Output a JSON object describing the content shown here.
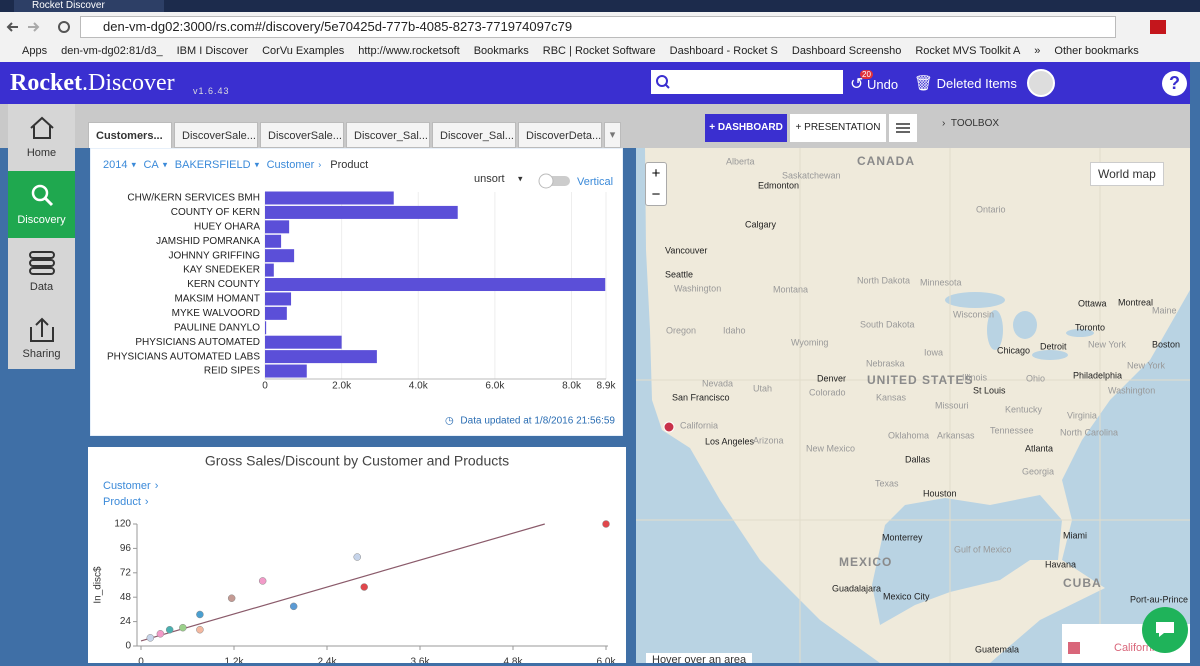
{
  "browser": {
    "tab_title": "Rocket Discover",
    "url": "den-vm-dg02:3000/rs.com#/discovery/5e70425d-777b-4085-8273-771974097c79",
    "bookmarks": [
      "Apps",
      "den-vm-dg02:81/d3_",
      "IBM I Discover",
      "CorVu Examples",
      "http://www.rocketsoft",
      "Bookmarks",
      "RBC | Rocket Software",
      "Dashboard - Rocket S",
      "Dashboard Screensho",
      "Rocket MVS Toolkit A",
      "»",
      "Other bookmarks"
    ]
  },
  "app": {
    "logo_bold": "Rocket",
    "logo_rest": ".Discover",
    "version": "v1.6.43",
    "undo_count": 20,
    "undo": "Undo",
    "deleted_items": "Deleted Items",
    "help": "?"
  },
  "sidebar": [
    "Home",
    "Discovery",
    "Data",
    "Sharing"
  ],
  "tabs": [
    "Customers...",
    "DiscoverSale...",
    "DiscoverSale...",
    "Discover_Sal...",
    "Discover_Sal...",
    "DiscoverDeta..."
  ],
  "toolbar": {
    "dashboard": "DASHBOARD",
    "presentation": "PRESENTATION",
    "toolbox": "TOOLBOX"
  },
  "bar_panel": {
    "breadcrumb": [
      "2014",
      "CA",
      "BAKERSFIELD",
      "Customer",
      "Product"
    ],
    "sort": "unsort",
    "orientation_toggle": "Vertical",
    "updated": "Data updated at 1/8/2016 21:56:59"
  },
  "scatter_panel": {
    "drill": [
      "Customer",
      "Product"
    ]
  },
  "map": {
    "button": "World map",
    "hover_hint": "Hover over an area",
    "legend": "California",
    "legend_color": "#d9667a",
    "point_color": "#c8324a",
    "zoom_in": "+",
    "zoom_out": "−",
    "labels": [
      "Alberta",
      "CANADA",
      "Saskatchewan",
      "Edmonton",
      "Ontario",
      "Calgary",
      "Vancouver",
      "Seattle",
      "Washington",
      "North Dakota",
      "Minnesota",
      "Montana",
      "Ottawa",
      "Montreal",
      "Maine",
      "Oregon",
      "Idaho",
      "South Dakota",
      "Wisconsin",
      "Toronto",
      "Wyoming",
      "Chicago",
      "Detroit",
      "New York",
      "Boston",
      "Nebraska",
      "Iowa",
      "New York",
      "Denver",
      "UNITED STATES",
      "Illinois",
      "Ohio",
      "Philadelphia",
      "Nevada",
      "Utah",
      "Colorado",
      "Kansas",
      "St Louis",
      "Washington",
      "San Francisco",
      "Missouri",
      "Kentucky",
      "Virginia",
      "California",
      "Los Angeles",
      "Arizona",
      "New Mexico",
      "Oklahoma",
      "Arkansas",
      "Tennessee",
      "North Carolina",
      "Atlanta",
      "Dallas",
      "Georgia",
      "Texas",
      "Houston",
      "Monterrey",
      "Gulf of Mexico",
      "Miami",
      "MEXICO",
      "Havana",
      "CUBA",
      "Guadalajara",
      "Mexico City",
      "Port-au-Prince",
      "Guatemala"
    ]
  },
  "chart_data": [
    {
      "type": "bar",
      "orientation": "horizontal",
      "color": "#5b4fd8",
      "grid": true,
      "categories": [
        "CHW/KERN SERVICES BMH",
        "COUNTY OF KERN",
        "HUEY OHARA",
        "JAMSHID POMRANKA",
        "JOHNNY GRIFFING",
        "KAY SNEDEKER",
        "KERN COUNTY",
        "MAKSIM HOMANT",
        "MYKE WALVOORD",
        "PAULINE DANYLO",
        "PHYSICIANS AUTOMATED",
        "PHYSICIANS AUTOMATED LABS",
        "REID SIPES"
      ],
      "values": [
        3360,
        5030,
        630,
        420,
        760,
        230,
        8880,
        680,
        570,
        30,
        2000,
        2920,
        1090
      ],
      "xlim": [
        0,
        8900
      ],
      "xticks": [
        0,
        {
          "value": 2000,
          "label": "2.0k"
        },
        {
          "value": 4000,
          "label": "4.0k"
        },
        {
          "value": 6000,
          "label": "6.0k"
        },
        {
          "value": 8000,
          "label": "8.0k"
        },
        {
          "value": 8900,
          "label": "8.9k"
        }
      ]
    },
    {
      "type": "scatter",
      "title": "Gross Sales/Discount by Customer and Products",
      "y_label": "In_disc$",
      "x": [
        6000,
        2790,
        1570,
        2880,
        1170,
        1970,
        760,
        370,
        760,
        250,
        540,
        120
      ],
      "y": [
        120,
        87.5,
        64,
        58,
        47,
        39,
        31,
        16,
        16,
        12,
        18,
        8
      ],
      "colors": [
        "#e0474c",
        "#c6d4ea",
        "#f29ac8",
        "#e0474c",
        "#c49a93",
        "#5b9bd5",
        "#4a9fd0",
        "#4ab0b0",
        "#f4b8a0",
        "#f29ac8",
        "#9bd08a",
        "#c6d4ea"
      ],
      "trendline": {
        "x": [
          0,
          5210
        ],
        "y": [
          5,
          120
        ],
        "color": "#8a5a6a"
      },
      "xlim": [
        0,
        6000
      ],
      "ylim": [
        0,
        120
      ],
      "xticks": [
        0,
        {
          "value": 1200,
          "label": "1.2k"
        },
        {
          "value": 2400,
          "label": "2.4k"
        },
        {
          "value": 3600,
          "label": "3.6k"
        },
        {
          "value": 4800,
          "label": "4.8k"
        },
        {
          "value": 6000,
          "label": "6.0k"
        }
      ],
      "yticks": [
        0,
        24,
        48,
        72,
        96,
        120
      ]
    }
  ]
}
